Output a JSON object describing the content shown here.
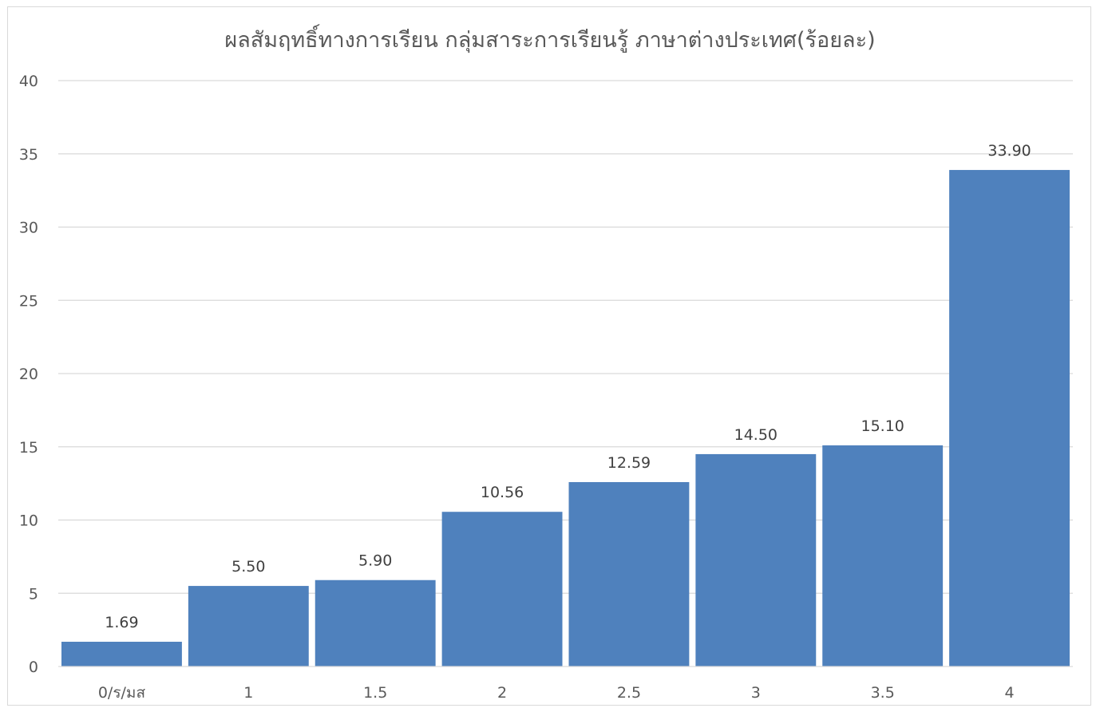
{
  "chart_data": {
    "type": "bar",
    "title": "ผลสัมฤทธิ์ทางการเรียน กลุ่มสาระการเรียนรู้ ภาษาต่างประเทศ(ร้อยละ)",
    "xlabel": "",
    "ylabel": "",
    "categories": [
      "0/ร/มส",
      "1",
      "1.5",
      "2",
      "2.5",
      "3",
      "3.5",
      "4"
    ],
    "values": [
      1.69,
      5.5,
      5.9,
      10.56,
      12.59,
      14.5,
      15.1,
      33.9
    ],
    "data_labels": [
      "1.69",
      "5.50",
      "5.90",
      "10.56",
      "12.59",
      "14.50",
      "15.10",
      "33.90"
    ],
    "y_ticks": [
      0,
      5,
      10,
      15,
      20,
      25,
      30,
      35,
      40
    ],
    "ylim": [
      0,
      40
    ],
    "grid": true,
    "legend": "none",
    "bar_color": "#4f81bd"
  }
}
